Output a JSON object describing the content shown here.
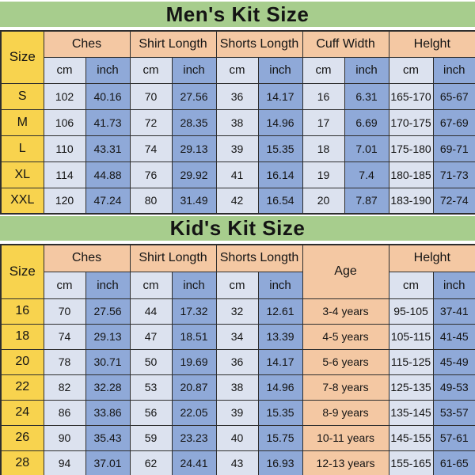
{
  "men": {
    "title": "Men's Kit Size",
    "size_label": "Size",
    "groups": [
      "Ches",
      "Shirt Longth",
      "Shorts Longth",
      "Cuff Width",
      "Helght"
    ],
    "units": {
      "cm": "cm",
      "inch": "inch"
    }
  },
  "kid": {
    "title": "Kid's Kit Size",
    "size_label": "Size",
    "age_label": "Age",
    "groups": [
      "Ches",
      "Shirt Longth",
      "Shorts Longth",
      "Helght"
    ],
    "units": {
      "cm": "cm",
      "inch": "inch"
    }
  },
  "colors": {
    "title_band": "#a7cd8d",
    "size_column": "#f8d34e",
    "group_header": "#f4c8a3",
    "cm_cell": "#dce2ef",
    "inch_cell": "#8fa9d8",
    "border": "#2e2e2e"
  },
  "chart_data": [
    {
      "type": "table",
      "title": "Men's Kit Size",
      "columns": [
        "Size",
        "Ches cm",
        "Ches inch",
        "Shirt Longth cm",
        "Shirt Longth inch",
        "Shorts Longth cm",
        "Shorts Longth inch",
        "Cuff Width cm",
        "Cuff Width inch",
        "Helght cm",
        "Helght inch"
      ],
      "rows": [
        [
          "S",
          "102",
          "40.16",
          "70",
          "27.56",
          "36",
          "14.17",
          "16",
          "6.31",
          "165-170",
          "65-67"
        ],
        [
          "M",
          "106",
          "41.73",
          "72",
          "28.35",
          "38",
          "14.96",
          "17",
          "6.69",
          "170-175",
          "67-69"
        ],
        [
          "L",
          "110",
          "43.31",
          "74",
          "29.13",
          "39",
          "15.35",
          "18",
          "7.01",
          "175-180",
          "69-71"
        ],
        [
          "XL",
          "114",
          "44.88",
          "76",
          "29.92",
          "41",
          "16.14",
          "19",
          "7.4",
          "180-185",
          "71-73"
        ],
        [
          "XXL",
          "120",
          "47.24",
          "80",
          "31.49",
          "42",
          "16.54",
          "20",
          "7.87",
          "183-190",
          "72-74"
        ]
      ]
    },
    {
      "type": "table",
      "title": "Kid's Kit Size",
      "columns": [
        "Size",
        "Ches cm",
        "Ches inch",
        "Shirt Longth cm",
        "Shirt Longth inch",
        "Shorts Longth cm",
        "Shorts Longth inch",
        "Age",
        "Helght cm",
        "Helght inch"
      ],
      "rows": [
        [
          "16",
          "70",
          "27.56",
          "44",
          "17.32",
          "32",
          "12.61",
          "3-4 years",
          "95-105",
          "37-41"
        ],
        [
          "18",
          "74",
          "29.13",
          "47",
          "18.51",
          "34",
          "13.39",
          "4-5 years",
          "105-115",
          "41-45"
        ],
        [
          "20",
          "78",
          "30.71",
          "50",
          "19.69",
          "36",
          "14.17",
          "5-6 years",
          "115-125",
          "45-49"
        ],
        [
          "22",
          "82",
          "32.28",
          "53",
          "20.87",
          "38",
          "14.96",
          "7-8 years",
          "125-135",
          "49-53"
        ],
        [
          "24",
          "86",
          "33.86",
          "56",
          "22.05",
          "39",
          "15.35",
          "8-9 years",
          "135-145",
          "53-57"
        ],
        [
          "26",
          "90",
          "35.43",
          "59",
          "23.23",
          "40",
          "15.75",
          "10-11 years",
          "145-155",
          "57-61"
        ],
        [
          "28",
          "94",
          "37.01",
          "62",
          "24.41",
          "43",
          "16.93",
          "12-13 years",
          "155-165",
          "61-65"
        ]
      ]
    }
  ]
}
